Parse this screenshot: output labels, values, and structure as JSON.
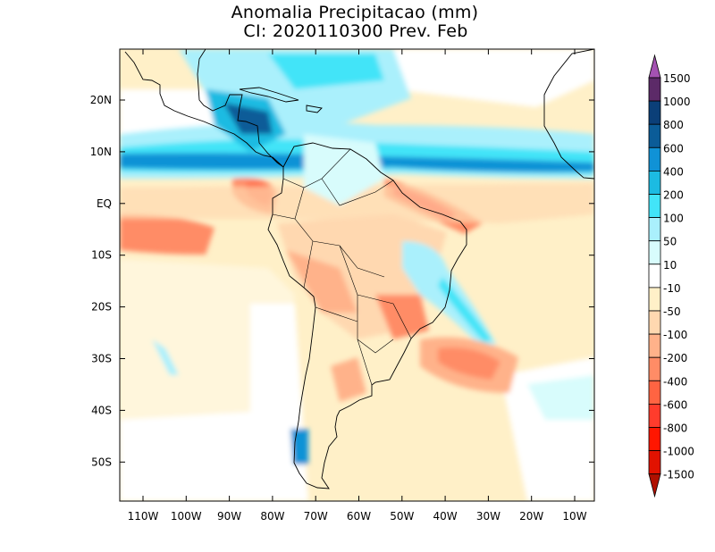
{
  "title": {
    "line1": "Anomalia Precipitacao (mm)",
    "line2": "CI: 2020110300 Prev. Feb"
  },
  "map": {
    "lat_labels": [
      "20N",
      "10N",
      "EQ",
      "10S",
      "20S",
      "30S",
      "40S",
      "50S"
    ],
    "lon_labels": [
      "110W",
      "100W",
      "90W",
      "80W",
      "70W",
      "60W",
      "50W",
      "40W",
      "30W",
      "20W",
      "10W"
    ],
    "background_color": "#fff0c8"
  },
  "legend": {
    "labels": [
      "1500",
      "1000",
      "800",
      "600",
      "400",
      "200",
      "100",
      "50",
      "10",
      "-10",
      "-50",
      "-100",
      "-200",
      "-400",
      "-600",
      "-800",
      "-1000",
      "-1500"
    ],
    "colors": [
      "#5c2a68",
      "#0b3f78",
      "#0b5c98",
      "#1092d6",
      "#1cbbe2",
      "#42e4f8",
      "#aaf0fc",
      "#d8fcfc",
      "#ffffff",
      "#fff0c8",
      "#ffd8b0",
      "#ffb28a",
      "#ff8c66",
      "#ff6442",
      "#ff3c2c",
      "#ff1600",
      "#e21200"
    ],
    "top_arrow_color": "#a452b2",
    "bottom_arrow_color": "#b01000"
  }
}
